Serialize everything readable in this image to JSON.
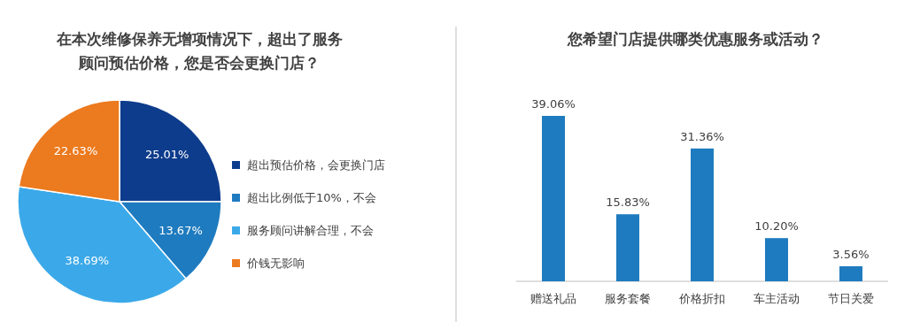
{
  "chart_data": [
    {
      "type": "pie",
      "title": "在本次维修保养无增项情况下，超出了服务顾问预估价格，您是否会更换门店？",
      "categories": [
        "超出预估价格，会更换门店",
        "超出比例低于10%，不会",
        "服务顾问讲解合理，不会",
        "价钱无影响"
      ],
      "values": [
        25.01,
        13.67,
        38.69,
        22.63
      ],
      "colors": [
        "#0e3c8c",
        "#1f7bbf",
        "#3ba9e9",
        "#ec7a1e"
      ],
      "legend": "right",
      "value_labels": [
        "25.01%",
        "13.67%",
        "38.69%",
        "22.63%"
      ]
    },
    {
      "type": "bar",
      "title": "您希望门店提供哪类优惠服务或活动？",
      "categories": [
        "赠送礼品",
        "服务套餐",
        "价格折扣",
        "车主活动",
        "节日关爱"
      ],
      "values": [
        39.06,
        15.83,
        31.36,
        10.2,
        3.56
      ],
      "value_labels": [
        "39.06%",
        "15.83%",
        "31.36%",
        "10.20%",
        "3.56%"
      ],
      "color": "#1f7bbf"
    }
  ]
}
